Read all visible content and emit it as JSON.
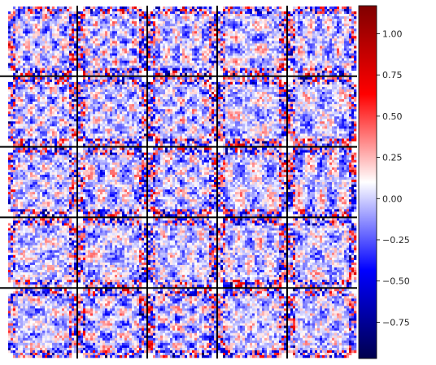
{
  "chart_data": {
    "type": "heatmap",
    "title": "",
    "grid": {
      "rows": 5,
      "cols": 5,
      "tile_resolution": 28
    },
    "colormap": "seismic",
    "colors": {
      "min": "#00004d",
      "mid": "#ffffff",
      "max": "#800000",
      "separator": "#000000"
    },
    "colorbar": {
      "vmin": -0.97,
      "vmax": 1.17,
      "ticks": [
        -0.75,
        -0.5,
        -0.25,
        0.0,
        0.25,
        0.5,
        0.75,
        1.0
      ],
      "tick_labels": [
        "−0.75",
        "−0.50",
        "−0.25",
        "0.00",
        "0.25",
        "0.50",
        "0.75",
        "1.00"
      ]
    },
    "xlabel": "",
    "ylabel": "",
    "legend": "colorbar-right"
  }
}
